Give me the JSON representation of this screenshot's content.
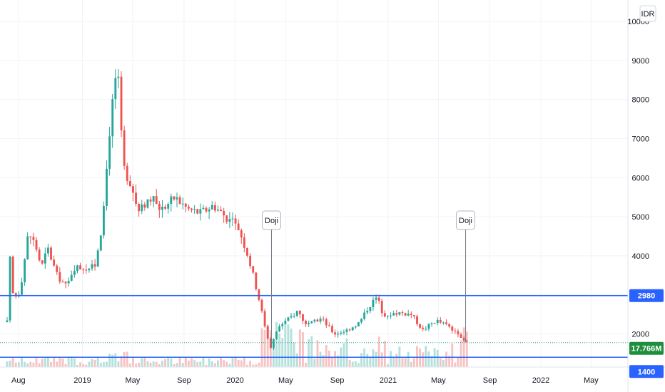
{
  "chart_data": {
    "type": "candlestick",
    "currency_label": "IDR",
    "y_ticks": [
      2000,
      3000,
      4000,
      5000,
      6000,
      7000,
      8000,
      9000,
      10000
    ],
    "ylim": [
      1150,
      10550
    ],
    "x_ticks": [
      "Aug",
      "2019",
      "May",
      "Sep",
      "2020",
      "May",
      "Sep",
      "2021",
      "May",
      "Sep",
      "2022",
      "May"
    ],
    "x_tick_dates": [
      "2018-08-01",
      "2019-01-01",
      "2019-05-01",
      "2019-09-01",
      "2020-01-01",
      "2020-05-01",
      "2020-09-01",
      "2021-01-01",
      "2021-05-01",
      "2021-09-01",
      "2022-01-01",
      "2022-05-01"
    ],
    "xlim": [
      "2018-06-18",
      "2022-07-28"
    ],
    "price_path": [
      [
        "2018-07-05",
        2300
      ],
      [
        "2018-07-12",
        3900
      ],
      [
        "2018-07-20",
        2900
      ],
      [
        "2018-08-05",
        3100
      ],
      [
        "2018-08-25",
        4600
      ],
      [
        "2018-09-10",
        4300
      ],
      [
        "2018-09-25",
        3700
      ],
      [
        "2018-10-10",
        4200
      ],
      [
        "2018-11-01",
        3500
      ],
      [
        "2018-11-25",
        3200
      ],
      [
        "2018-12-10",
        3700
      ],
      [
        "2019-01-10",
        3700
      ],
      [
        "2019-01-30",
        3700
      ],
      [
        "2019-02-20",
        5000
      ],
      [
        "2019-03-05",
        7000
      ],
      [
        "2019-03-20",
        8600
      ],
      [
        "2019-03-28",
        8400
      ],
      [
        "2019-04-08",
        6300
      ],
      [
        "2019-04-25",
        5900
      ],
      [
        "2019-05-15",
        5100
      ],
      [
        "2019-06-10",
        5500
      ],
      [
        "2019-07-10",
        5200
      ],
      [
        "2019-08-10",
        5500
      ],
      [
        "2019-09-10",
        5200
      ],
      [
        "2019-10-10",
        5100
      ],
      [
        "2019-11-10",
        5300
      ],
      [
        "2019-12-10",
        5000
      ],
      [
        "2020-01-10",
        4700
      ],
      [
        "2020-02-01",
        4000
      ],
      [
        "2020-02-25",
        3000
      ],
      [
        "2020-03-10",
        2300
      ],
      [
        "2020-03-25",
        1650
      ],
      [
        "2020-04-15",
        2200
      ],
      [
        "2020-05-10",
        2400
      ],
      [
        "2020-05-30",
        2600
      ],
      [
        "2020-06-20",
        2200
      ],
      [
        "2020-07-25",
        2400
      ],
      [
        "2020-08-25",
        2000
      ],
      [
        "2020-09-25",
        2100
      ],
      [
        "2020-10-25",
        2300
      ],
      [
        "2020-11-15",
        2700
      ],
      [
        "2020-12-05",
        2950
      ],
      [
        "2020-12-20",
        2500
      ],
      [
        "2021-01-25",
        2550
      ],
      [
        "2021-02-25",
        2500
      ],
      [
        "2021-03-25",
        2100
      ],
      [
        "2021-04-25",
        2350
      ],
      [
        "2021-05-25",
        2200
      ],
      [
        "2021-06-25",
        1850
      ],
      [
        "2021-07-08",
        1780
      ]
    ],
    "annotations": [
      {
        "label": "Doji",
        "date": "2020-03-28",
        "price": 1650
      },
      {
        "label": "Doji",
        "date": "2021-07-05",
        "price": 1780
      }
    ],
    "horizontal_lines": [
      {
        "value": 2980,
        "label": "2980",
        "color": "#2962ff"
      },
      {
        "value": 1400,
        "label": "1400",
        "color": "#2962ff"
      }
    ],
    "last_price_line": {
      "value": 1776,
      "color": "#26a69a"
    },
    "volume_label": "17.766M",
    "colors": {
      "up": "#26a69a",
      "down": "#ef5350",
      "up_volume": "#b5e0db",
      "down_volume": "#f7c3c2"
    }
  }
}
